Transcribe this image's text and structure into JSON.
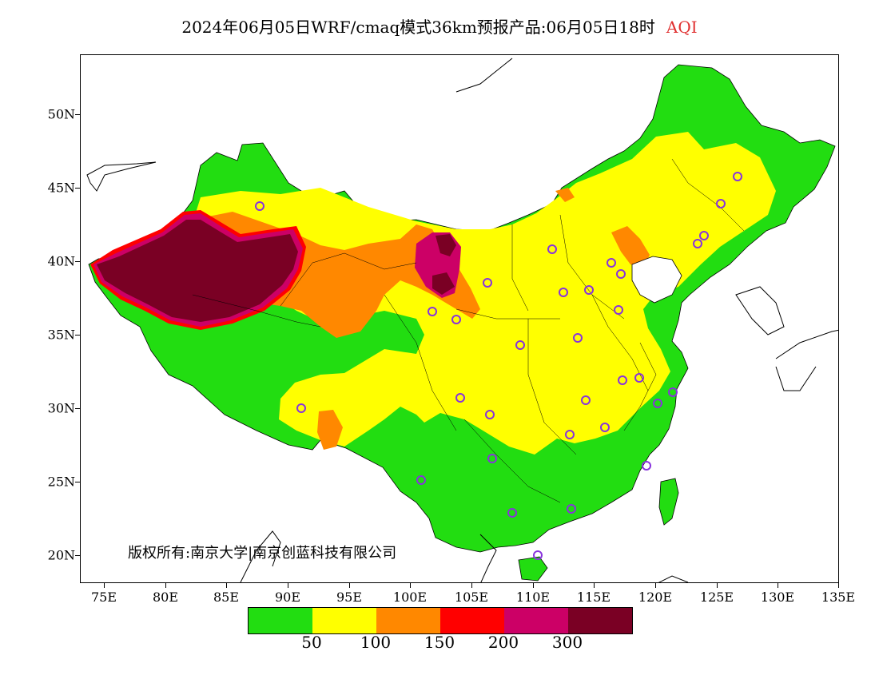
{
  "title": {
    "main": "2024年06月05日WRF/cmaq模式36km预报产品:06月05日18时",
    "variable": "AQI"
  },
  "copyright": "版权所有:南京大学|南京创蓝科技有限公司",
  "axes": {
    "y_labels": [
      "50N",
      "45N",
      "40N",
      "35N",
      "30N",
      "25N",
      "20N"
    ],
    "x_labels": [
      "75E",
      "80E",
      "85E",
      "90E",
      "95E",
      "100E",
      "105E",
      "110E",
      "115E",
      "120E",
      "125E",
      "130E",
      "135E"
    ],
    "lon_range": [
      73,
      135
    ],
    "lat_range": [
      18,
      54
    ]
  },
  "legend": {
    "colors": [
      "#22dd11",
      "#ffff00",
      "#ff8800",
      "#ff0000",
      "#cc0066",
      "#7a0024"
    ],
    "labels": [
      "50",
      "100",
      "150",
      "200",
      "300"
    ]
  },
  "colors": {
    "good": "#22dd11",
    "moderate": "#ffff00",
    "usg": "#ff8800",
    "unhealthy": "#ff0000",
    "very_unhealthy": "#cc0066",
    "hazardous": "#7a0024",
    "station": "#8833dd",
    "title_var": "#e03030"
  }
}
